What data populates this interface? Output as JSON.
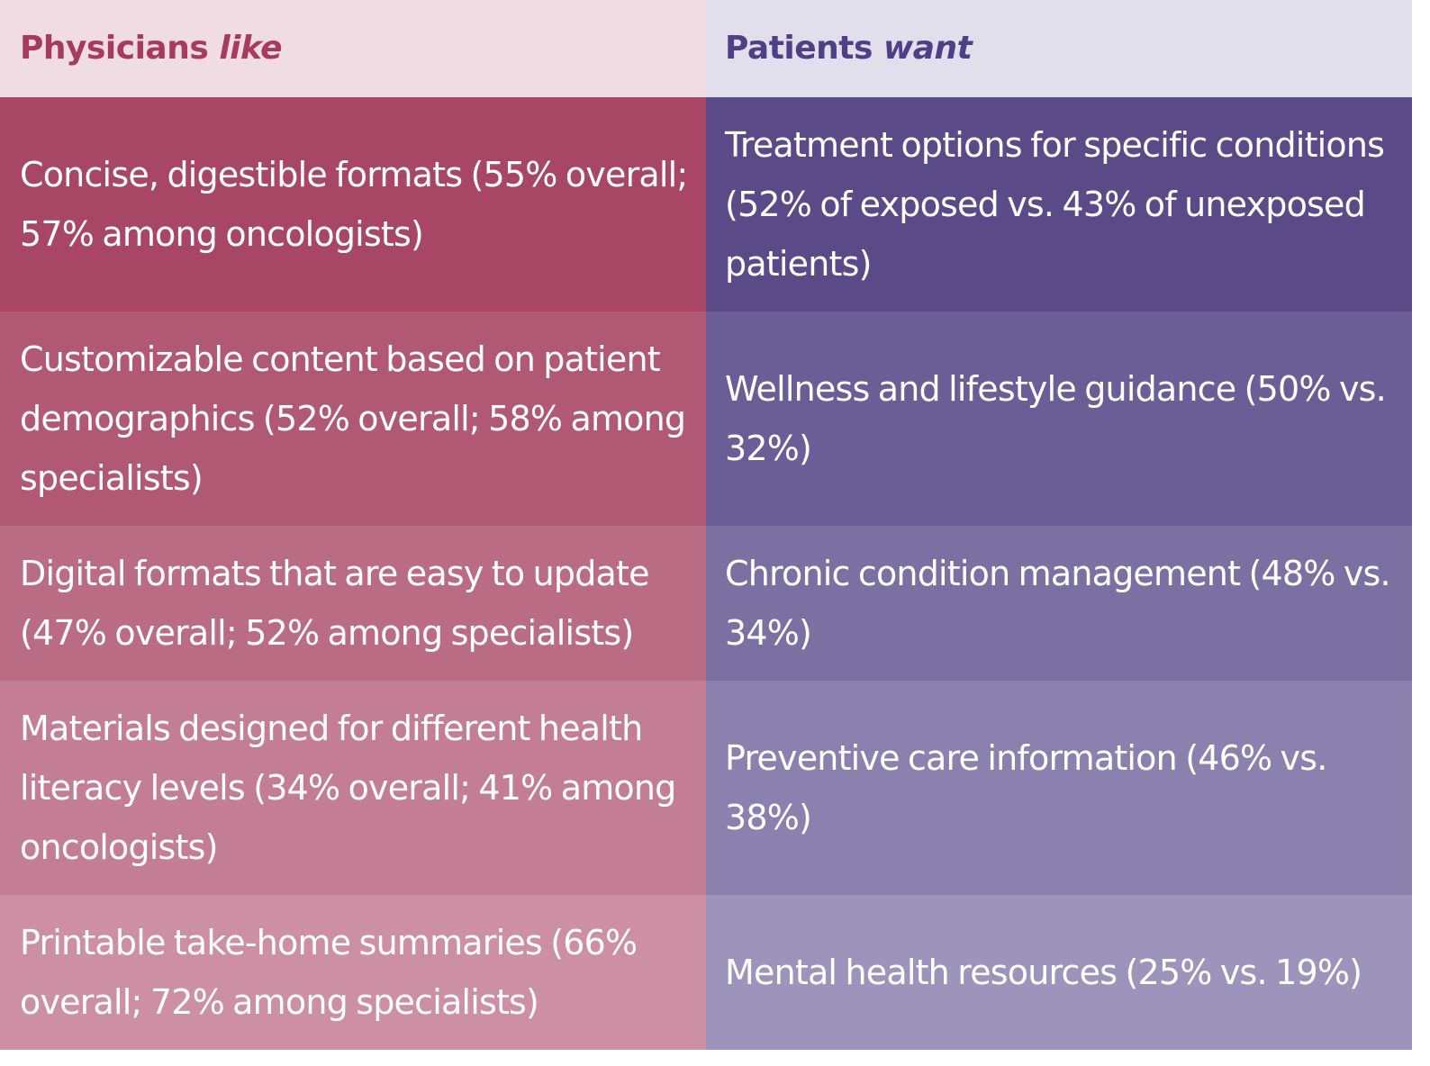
{
  "header": {
    "left_plain": "Physicians ",
    "left_italic": "like",
    "right_plain": "Patients ",
    "right_italic": "want"
  },
  "rows": [
    {
      "physicians": "Concise, digestible formats (55% overall; 57% among oncologists)",
      "patients": "Treatment options for specific conditions (52% of exposed vs. 43% of unexposed patients)"
    },
    {
      "physicians": "Customizable content based on patient demographics (52% overall; 58% among specialists)",
      "patients": "Wellness and lifestyle guidance (50% vs. 32%)"
    },
    {
      "physicians": "Digital formats that are easy to update (47% overall; 52% among specialists)",
      "patients": "Chronic condition management (48% vs. 34%)"
    },
    {
      "physicians": "Materials designed for different health literacy levels (34% overall; 41% among oncologists)",
      "patients": "Preventive care information (46% vs. 38%)"
    },
    {
      "physicians": "Printable take-home summaries (66% overall; 72% among specialists)",
      "patients": "Mental health resources (25% vs. 19%)"
    }
  ],
  "colors": {
    "physicians_accent": "#a8395f",
    "patients_accent": "#4e3f86"
  }
}
